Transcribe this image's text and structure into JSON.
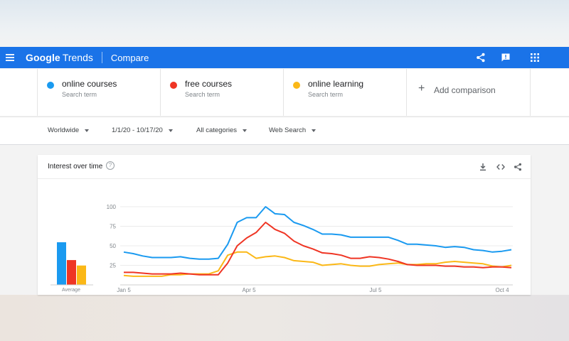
{
  "header": {
    "logo_google": "Google",
    "logo_trends": "Trends",
    "page_title": "Compare",
    "icons": [
      "menu-icon",
      "share-icon",
      "feedback-icon",
      "apps-icon"
    ]
  },
  "terms": [
    {
      "name": "online courses",
      "sub": "Search term",
      "color": "#1a9af0"
    },
    {
      "name": "free courses",
      "sub": "Search term",
      "color": "#ef3524"
    },
    {
      "name": "online learning",
      "sub": "Search term",
      "color": "#fbb817"
    }
  ],
  "add_comparison": {
    "label": "Add comparison"
  },
  "filters": {
    "region": "Worldwide",
    "date_range": "1/1/20 - 10/17/20",
    "category": "All categories",
    "search_type": "Web Search"
  },
  "card": {
    "title": "Interest over time",
    "help": "?",
    "icons": [
      "download-icon",
      "embed-icon",
      "share-icon"
    ]
  },
  "chart_data": {
    "type": "line",
    "ylim": [
      0,
      100
    ],
    "yticks": [
      "100",
      "75",
      "50",
      "25"
    ],
    "x_ticks": [
      "Jan 5",
      "Apr 5",
      "Jul 5",
      "Oct 4"
    ],
    "average": {
      "label": "Average",
      "values": [
        55,
        32,
        25
      ]
    },
    "series": [
      {
        "name": "online courses",
        "color": "#1a9af0",
        "values": [
          42,
          40,
          37,
          35,
          35,
          35,
          36,
          34,
          33,
          33,
          34,
          52,
          80,
          86,
          86,
          100,
          91,
          90,
          80,
          76,
          71,
          65,
          65,
          64,
          61,
          61,
          61,
          61,
          61,
          57,
          52,
          52,
          51,
          50,
          48,
          49,
          48,
          45,
          44,
          42,
          43,
          45
        ]
      },
      {
        "name": "free courses",
        "color": "#ef3524",
        "values": [
          16,
          16,
          15,
          14,
          14,
          14,
          15,
          14,
          13,
          13,
          13,
          28,
          50,
          60,
          67,
          80,
          71,
          66,
          56,
          50,
          46,
          41,
          40,
          38,
          34,
          34,
          36,
          35,
          33,
          30,
          26,
          25,
          25,
          25,
          24,
          24,
          23,
          23,
          22,
          23,
          23,
          22
        ]
      },
      {
        "name": "online learning",
        "color": "#fbb817",
        "values": [
          12,
          11,
          11,
          11,
          11,
          13,
          13,
          14,
          14,
          14,
          18,
          38,
          42,
          42,
          34,
          36,
          37,
          35,
          31,
          30,
          29,
          25,
          26,
          27,
          25,
          24,
          24,
          26,
          27,
          28,
          26,
          26,
          27,
          27,
          29,
          30,
          29,
          28,
          27,
          24,
          23,
          25
        ]
      }
    ]
  }
}
